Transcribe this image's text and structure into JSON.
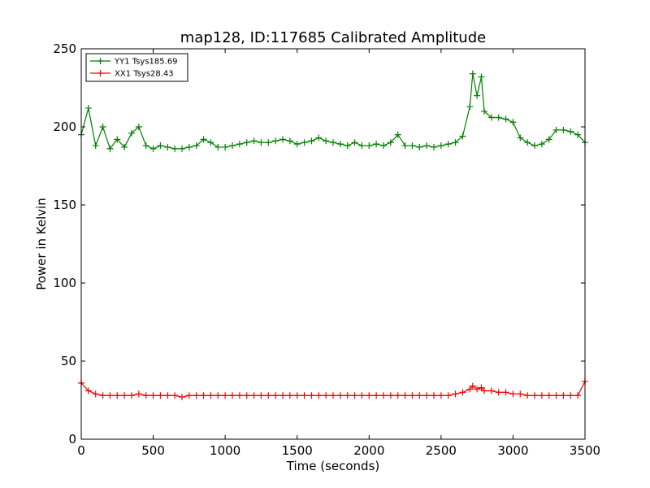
{
  "chart_data": {
    "type": "line",
    "title": "map128, ID:117685 Calibrated Amplitude",
    "xlabel": "Time (seconds)",
    "ylabel": "Power in Kelvin",
    "xlim": [
      0,
      3500
    ],
    "ylim": [
      0,
      250
    ],
    "xticks": [
      "0",
      "500",
      "1000",
      "1500",
      "2000",
      "2500",
      "3000",
      "3500"
    ],
    "yticks": [
      "0",
      "50",
      "100",
      "150",
      "200",
      "250"
    ],
    "legend_position": "top-left",
    "series": [
      {
        "name": "YY1 Tsys185.69",
        "color": "#008000",
        "marker": "+",
        "x": [
          0,
          50,
          100,
          150,
          200,
          250,
          300,
          350,
          400,
          450,
          500,
          550,
          600,
          650,
          700,
          750,
          800,
          850,
          900,
          950,
          1000,
          1050,
          1100,
          1150,
          1200,
          1250,
          1300,
          1350,
          1400,
          1450,
          1500,
          1550,
          1600,
          1650,
          1700,
          1750,
          1800,
          1850,
          1900,
          1950,
          2000,
          2050,
          2100,
          2150,
          2200,
          2250,
          2300,
          2350,
          2400,
          2450,
          2500,
          2550,
          2600,
          2650,
          2700,
          2720,
          2750,
          2780,
          2800,
          2850,
          2900,
          2950,
          3000,
          3050,
          3100,
          3150,
          3200,
          3250,
          3300,
          3350,
          3400,
          3450,
          3500
        ],
        "values": [
          195,
          212,
          188,
          200,
          186,
          192,
          187,
          196,
          200,
          188,
          186,
          188,
          187,
          186,
          186,
          187,
          188,
          192,
          190,
          187,
          187,
          188,
          189,
          190,
          191,
          190,
          190,
          191,
          192,
          191,
          189,
          190,
          191,
          193,
          191,
          190,
          189,
          188,
          190,
          188,
          188,
          189,
          188,
          190,
          195,
          188,
          188,
          187,
          188,
          187,
          188,
          189,
          190,
          194,
          213,
          234,
          220,
          232,
          210,
          206,
          206,
          205,
          203,
          193,
          190,
          188,
          189,
          192,
          198,
          198,
          197,
          195,
          190
        ]
      },
      {
        "name": "XX1 Tsys28.43",
        "color": "#ff0000",
        "marker": "+",
        "x": [
          0,
          50,
          100,
          150,
          200,
          250,
          300,
          350,
          400,
          450,
          500,
          550,
          600,
          650,
          700,
          750,
          800,
          850,
          900,
          950,
          1000,
          1050,
          1100,
          1150,
          1200,
          1250,
          1300,
          1350,
          1400,
          1450,
          1500,
          1550,
          1600,
          1650,
          1700,
          1750,
          1800,
          1850,
          1900,
          1950,
          2000,
          2050,
          2100,
          2150,
          2200,
          2250,
          2300,
          2350,
          2400,
          2450,
          2500,
          2550,
          2600,
          2650,
          2700,
          2720,
          2750,
          2780,
          2800,
          2850,
          2900,
          2950,
          3000,
          3050,
          3100,
          3150,
          3200,
          3250,
          3300,
          3350,
          3400,
          3450,
          3500
        ],
        "values": [
          36,
          31,
          29,
          28,
          28,
          28,
          28,
          28,
          29,
          28,
          28,
          28,
          28,
          28,
          27,
          28,
          28,
          28,
          28,
          28,
          28,
          28,
          28,
          28,
          28,
          28,
          28,
          28,
          28,
          28,
          28,
          28,
          28,
          28,
          28,
          28,
          28,
          28,
          28,
          28,
          28,
          28,
          28,
          28,
          28,
          28,
          28,
          28,
          28,
          28,
          28,
          28,
          29,
          30,
          32,
          34,
          32,
          33,
          31,
          31,
          30,
          30,
          29,
          29,
          28,
          28,
          28,
          28,
          28,
          28,
          28,
          28,
          37
        ]
      }
    ]
  }
}
